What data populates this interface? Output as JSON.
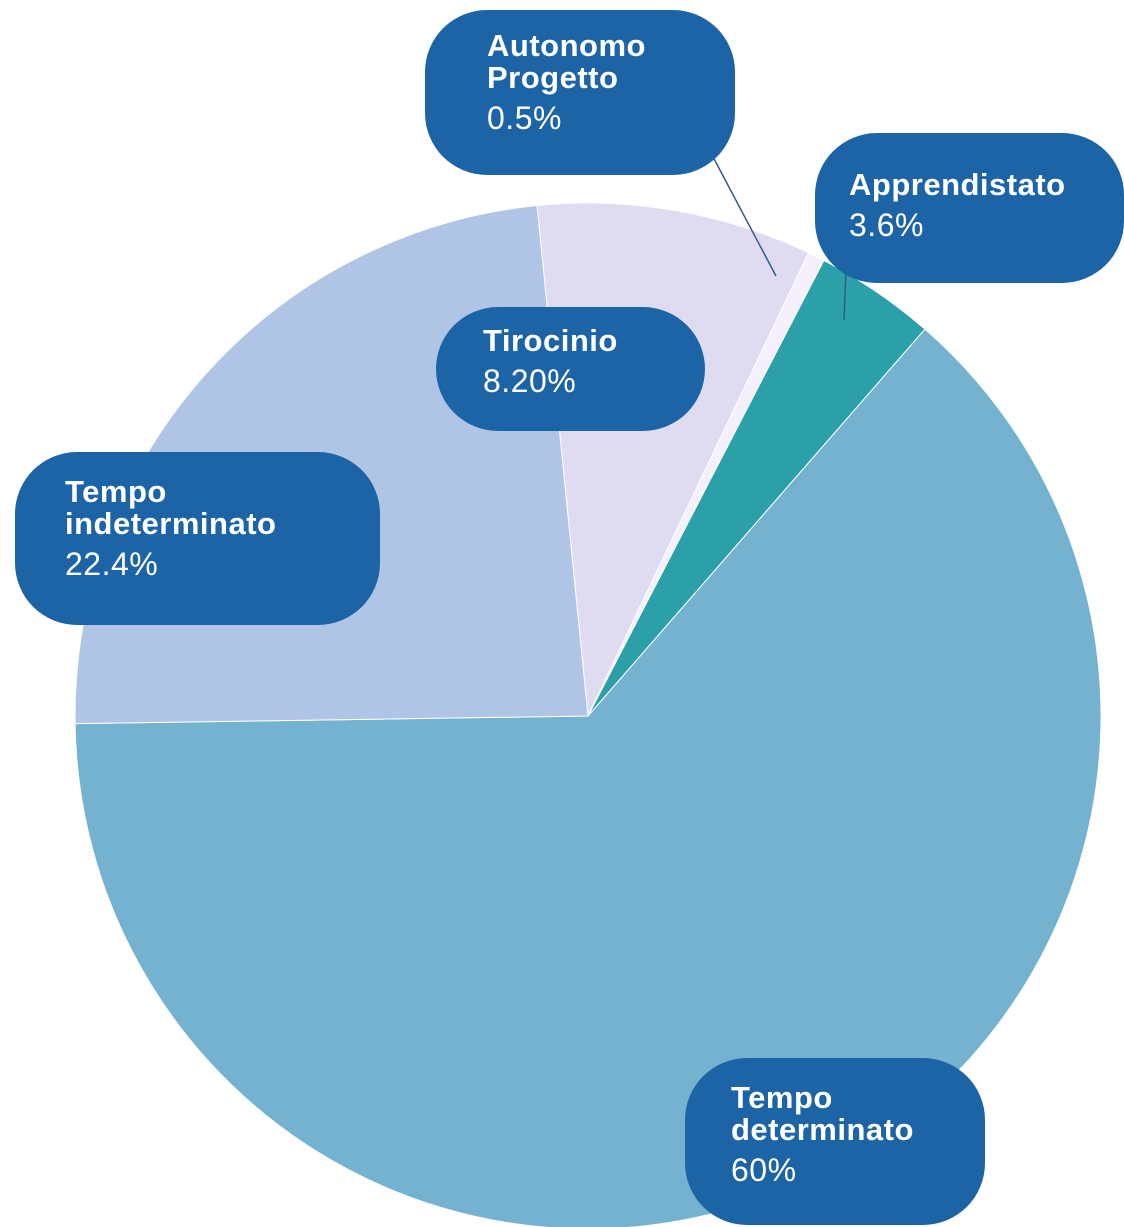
{
  "chart_data": {
    "type": "pie",
    "categories": [
      "Tirocinio",
      "Autonomo Progetto",
      "Apprendistato",
      "Tempo determinato",
      "Tempo indeterminato"
    ],
    "values": [
      8.2,
      0.5,
      3.6,
      60,
      22.4
    ],
    "value_labels": [
      "8.20%",
      "0.5%",
      "3.6%",
      "60%",
      "22.4%"
    ],
    "colors": [
      "#dfdcf2",
      "#f5f0fb",
      "#2ba0a8",
      "#74b2cf",
      "#b0c5e5"
    ]
  }
}
